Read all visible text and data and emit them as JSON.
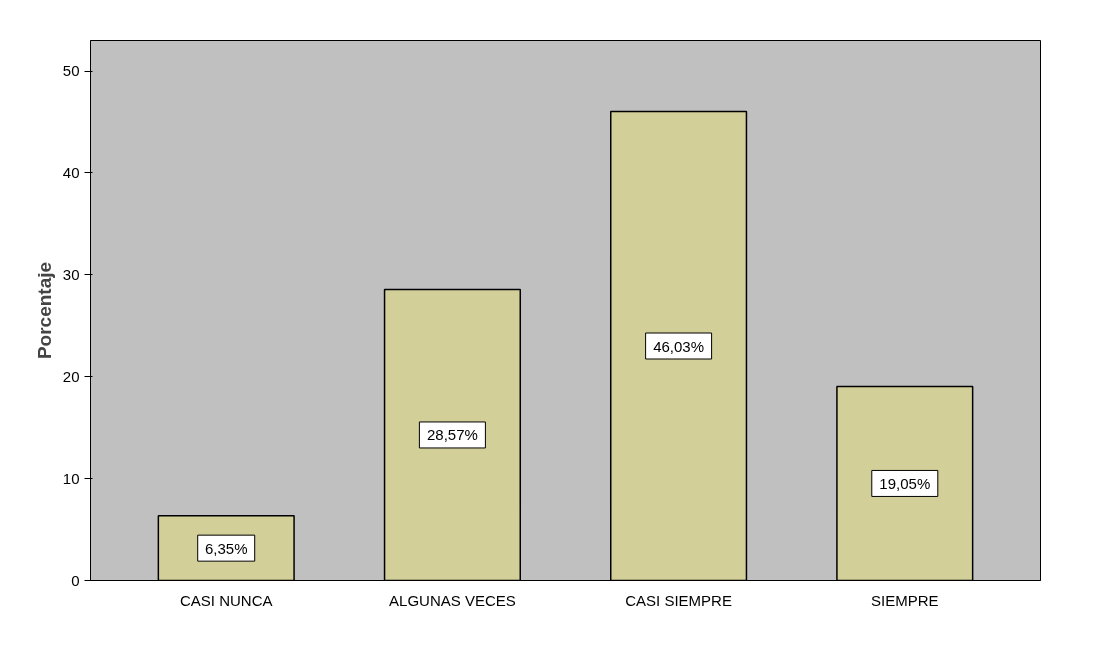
{
  "chart_data": {
    "type": "bar",
    "ylabel": "Porcentaje",
    "categories": [
      "CASI NUNCA",
      "ALGUNAS VECES",
      "CASI SIEMPRE",
      "SIEMPRE"
    ],
    "values": [
      6.35,
      28.57,
      46.03,
      19.05
    ],
    "value_labels": [
      "6,35%",
      "28,57%",
      "46,03%",
      "19,05%"
    ],
    "color": "#d3cf98",
    "ylim": [
      0,
      53
    ],
    "yticks": [
      0,
      10,
      20,
      30,
      40,
      50
    ],
    "grid": false
  }
}
